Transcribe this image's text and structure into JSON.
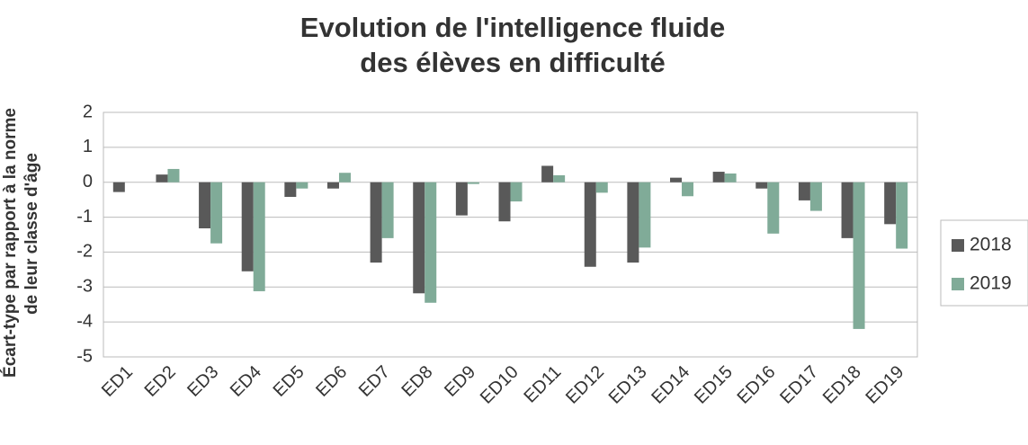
{
  "chart_data": {
    "type": "bar",
    "title": [
      "Evolution de l'intelligence fluide",
      "des élèves en difficulté"
    ],
    "y_label": [
      "Écart-type par rapport à la norme",
      "de leur classe d'âge"
    ],
    "categories": [
      "ED1",
      "ED2",
      "ED3",
      "ED4",
      "ED5",
      "ED6",
      "ED7",
      "ED8",
      "ED9",
      "ED10",
      "ED11",
      "ED12",
      "ED13",
      "ED14",
      "ED15",
      "ED16",
      "ED17",
      "ED18",
      "ED19"
    ],
    "series": [
      {
        "name": "2018",
        "color": "#595959",
        "values": [
          -0.28,
          0.22,
          -1.32,
          -2.55,
          -0.42,
          -0.18,
          -2.3,
          -3.18,
          -0.95,
          -1.12,
          0.47,
          -2.42,
          -2.3,
          0.13,
          0.3,
          -0.18,
          -0.52,
          -1.6,
          -1.2
        ]
      },
      {
        "name": "2019",
        "color": "#80ab98",
        "values": [
          0,
          0.38,
          -1.75,
          -3.12,
          -0.18,
          0.27,
          -1.6,
          -3.45,
          -0.05,
          -0.55,
          0.2,
          -0.3,
          -1.87,
          -0.4,
          0.25,
          -1.47,
          -0.82,
          -4.2,
          -1.9
        ]
      }
    ],
    "ylim": [
      -5,
      2
    ],
    "yticks": [
      -5,
      -4,
      -3,
      -2,
      -1,
      0,
      1,
      2
    ],
    "grid": true,
    "legend": "right"
  }
}
